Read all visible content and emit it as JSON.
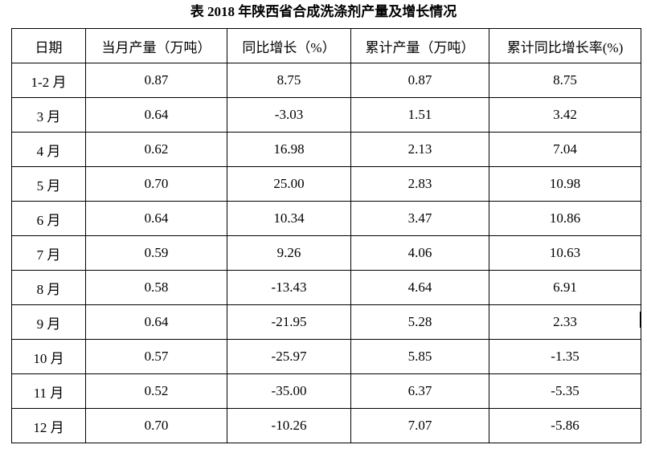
{
  "title": "表 2018 年陕西省合成洗涤剂产量及增长情况",
  "headers": [
    "日期",
    "当月产量（万吨）",
    "同比增长（%）",
    "累计产量（万吨）",
    "累计同比增长率(%)"
  ],
  "rows": [
    [
      "1-2 月",
      "0.87",
      "8.75",
      "0.87",
      "8.75"
    ],
    [
      "3 月",
      "0.64",
      "-3.03",
      "1.51",
      "3.42"
    ],
    [
      "4 月",
      "0.62",
      "16.98",
      "2.13",
      "7.04"
    ],
    [
      "5 月",
      "0.70",
      "25.00",
      "2.83",
      "10.98"
    ],
    [
      "6 月",
      "0.64",
      "10.34",
      "3.47",
      "10.86"
    ],
    [
      "7 月",
      "0.59",
      "9.26",
      "4.06",
      "10.63"
    ],
    [
      "8 月",
      "0.58",
      "-13.43",
      "4.64",
      "6.91"
    ],
    [
      "9 月",
      "0.64",
      "-21.95",
      "5.28",
      "2.33"
    ],
    [
      "10 月",
      "0.57",
      "-25.97",
      "5.85",
      "-1.35"
    ],
    [
      "11 月",
      "0.52",
      "-35.00",
      "6.37",
      "-5.35"
    ],
    [
      "12 月",
      "0.70",
      "-10.26",
      "7.07",
      "-5.86"
    ]
  ]
}
